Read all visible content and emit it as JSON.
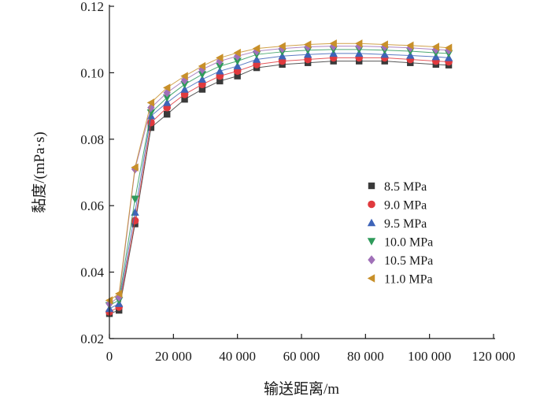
{
  "chart_data": {
    "type": "line",
    "xlabel": "输送距离/m",
    "ylabel": "黏度/(mPa·s)",
    "xlim": [
      0,
      120000
    ],
    "ylim": [
      0.02,
      0.12
    ],
    "x_ticks": [
      0,
      20000,
      40000,
      60000,
      80000,
      100000,
      120000
    ],
    "x_tick_labels": [
      "0",
      "20 000",
      "40 000",
      "60 000",
      "80 000",
      "100 000",
      "120 000"
    ],
    "y_ticks": [
      0.02,
      0.04,
      0.06,
      0.08,
      0.1,
      0.12
    ],
    "y_tick_labels": [
      "0.02",
      "0.04",
      "0.06",
      "0.08",
      "0.10",
      "0.12"
    ],
    "grid": false,
    "legend_position": "right-middle",
    "x": [
      0,
      3000,
      8000,
      13000,
      18000,
      23500,
      29000,
      34500,
      40000,
      46000,
      54000,
      62000,
      70000,
      78000,
      86000,
      94000,
      102000,
      106000
    ],
    "series": [
      {
        "name": "8.5 MPa",
        "color": "#3a3a3a",
        "marker": "square",
        "values": [
          0.0275,
          0.0285,
          0.0545,
          0.0835,
          0.0875,
          0.092,
          0.095,
          0.0975,
          0.099,
          0.1015,
          0.1025,
          0.103,
          0.1035,
          0.1035,
          0.1035,
          0.103,
          0.1025,
          0.1023
        ]
      },
      {
        "name": "9.0 MPa",
        "color": "#e03a3e",
        "marker": "circle",
        "values": [
          0.028,
          0.0295,
          0.0555,
          0.085,
          0.0895,
          0.0935,
          0.0965,
          0.099,
          0.1005,
          0.1025,
          0.1035,
          0.104,
          0.1045,
          0.1045,
          0.1045,
          0.104,
          0.1035,
          0.1033
        ]
      },
      {
        "name": "9.5 MPa",
        "color": "#3e64b8",
        "marker": "triangle-up",
        "values": [
          0.029,
          0.0305,
          0.058,
          0.087,
          0.091,
          0.095,
          0.098,
          0.1005,
          0.102,
          0.104,
          0.105,
          0.1055,
          0.1058,
          0.1058,
          0.1055,
          0.1052,
          0.1048,
          0.1045
        ]
      },
      {
        "name": "10.0 MPa",
        "color": "#2e9a5a",
        "marker": "triangle-down",
        "values": [
          0.03,
          0.0315,
          0.062,
          0.088,
          0.0925,
          0.0965,
          0.0995,
          0.102,
          0.1035,
          0.1055,
          0.1063,
          0.1068,
          0.107,
          0.107,
          0.1068,
          0.1065,
          0.106,
          0.1058
        ]
      },
      {
        "name": "10.5 MPa",
        "color": "#a070b8",
        "marker": "diamond",
        "values": [
          0.0305,
          0.0325,
          0.071,
          0.0895,
          0.094,
          0.0978,
          0.101,
          0.1035,
          0.105,
          0.1065,
          0.1073,
          0.1078,
          0.108,
          0.108,
          0.1078,
          0.1075,
          0.107,
          0.1068
        ]
      },
      {
        "name": "11.0 MPa",
        "color": "#c8902a",
        "marker": "triangle-left",
        "values": [
          0.0315,
          0.0335,
          0.0715,
          0.091,
          0.0955,
          0.099,
          0.102,
          0.1045,
          0.106,
          0.1073,
          0.108,
          0.1085,
          0.1088,
          0.1088,
          0.1085,
          0.1082,
          0.1078,
          0.1075
        ]
      }
    ]
  }
}
